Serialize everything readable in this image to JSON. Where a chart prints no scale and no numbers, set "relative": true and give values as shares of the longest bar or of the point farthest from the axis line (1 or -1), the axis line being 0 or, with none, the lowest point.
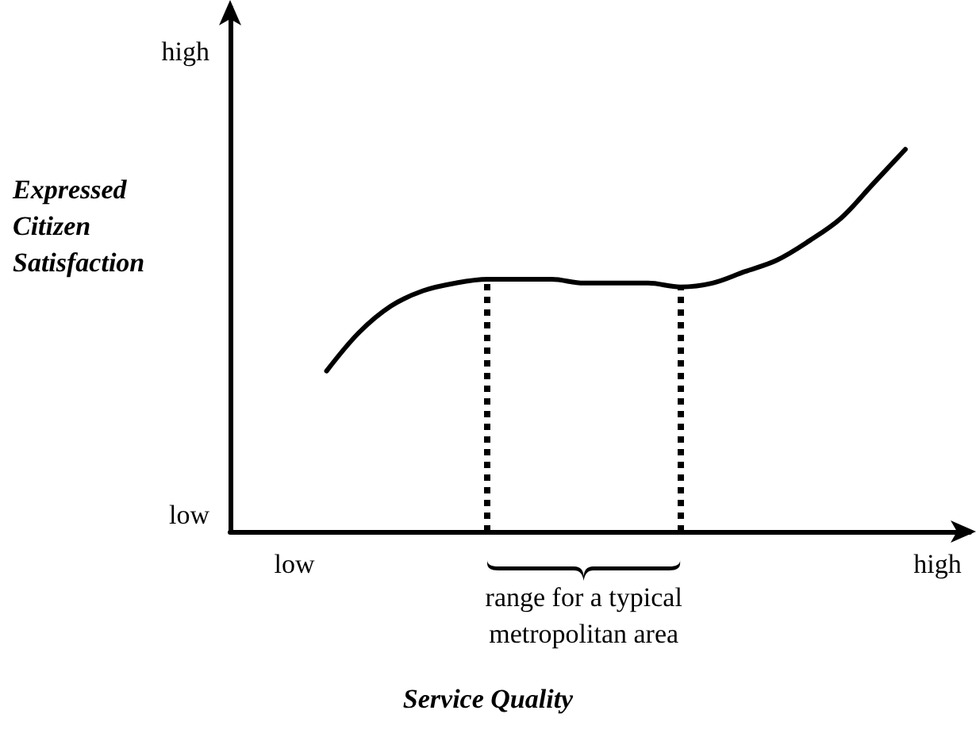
{
  "chart_data": {
    "type": "line",
    "relative": true,
    "xlabel": "Service Quality",
    "ylabel": "Expressed Citizen Satisfaction",
    "annotations": [
      "high",
      "low",
      "range for a typical metropolitan area"
    ],
    "categories": [
      null,
      null,
      "low",
      null,
      null,
      null,
      null,
      null,
      null,
      null,
      null,
      null,
      null,
      null,
      null,
      null,
      null,
      null,
      null,
      null,
      null,
      null,
      "high",
      null
    ],
    "values": [
      null,
      null,
      null,
      0.42,
      0.52,
      0.59,
      0.63,
      0.65,
      0.66,
      0.66,
      0.66,
      0.65,
      0.65,
      0.65,
      0.64,
      0.65,
      0.68,
      0.71,
      0.76,
      0.82,
      0.91,
      1,
      null,
      null
    ],
    "color": "#000000",
    "marker": "none",
    "line_style": "solid"
  }
}
